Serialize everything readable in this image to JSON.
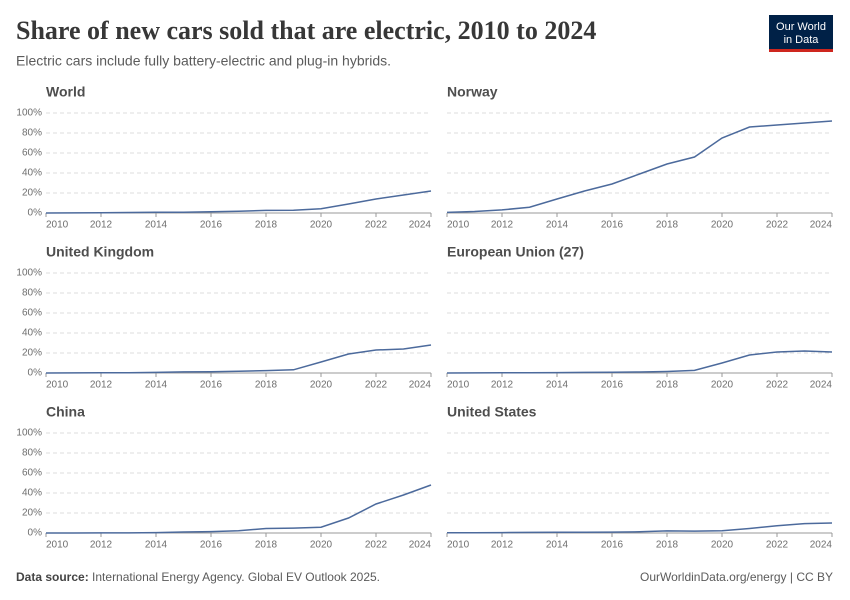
{
  "title": "Share of new cars sold that are electric, 2010 to 2024",
  "subtitle": "Electric cars include fully battery-electric and plug-in hybrids.",
  "logo": [
    "Our World",
    "in Data"
  ],
  "source": {
    "label": "Data source:",
    "text": "International Energy Agency. Global EV Outlook 2025."
  },
  "credit": "OurWorldinData.org/energy | CC BY",
  "chart_data": [
    {
      "type": "line",
      "title": "World",
      "color": "#4c6a9c",
      "grid": true,
      "x": [
        2010,
        2011,
        2012,
        2013,
        2014,
        2015,
        2016,
        2017,
        2018,
        2019,
        2020,
        2021,
        2022,
        2023,
        2024
      ],
      "values": [
        0,
        0.1,
        0.2,
        0.5,
        0.7,
        0.8,
        1.2,
        1.7,
        2.6,
        2.7,
        4.2,
        9,
        14,
        18,
        22
      ],
      "xlim": [
        2010,
        2024
      ],
      "xticks": [
        2010,
        2012,
        2014,
        2016,
        2018,
        2020,
        2022,
        2024
      ],
      "ylim": [
        0,
        100
      ],
      "yticks": [
        {
          "value": 0,
          "label": "0%"
        },
        {
          "value": 20,
          "label": "20%"
        },
        {
          "value": 40,
          "label": "40%"
        },
        {
          "value": 60,
          "label": "60%"
        },
        {
          "value": 80,
          "label": "80%"
        },
        {
          "value": 100,
          "label": "100%"
        }
      ]
    },
    {
      "type": "line",
      "title": "Norway",
      "color": "#4c6a9c",
      "grid": true,
      "x": [
        2010,
        2011,
        2012,
        2013,
        2014,
        2015,
        2016,
        2017,
        2018,
        2019,
        2020,
        2021,
        2022,
        2023,
        2024
      ],
      "values": [
        0.6,
        1.5,
        3.1,
        5.8,
        14,
        22,
        29,
        39,
        49,
        56,
        75,
        86,
        88,
        90,
        92
      ],
      "xlim": [
        2010,
        2024
      ],
      "xticks": [
        2010,
        2012,
        2014,
        2016,
        2018,
        2020,
        2022,
        2024
      ],
      "ylim": [
        0,
        100
      ],
      "yticks": [
        0,
        20,
        40,
        60,
        80,
        100
      ]
    },
    {
      "type": "line",
      "title": "United Kingdom",
      "color": "#4c6a9c",
      "grid": true,
      "x": [
        2010,
        2011,
        2012,
        2013,
        2014,
        2015,
        2016,
        2017,
        2018,
        2019,
        2020,
        2021,
        2022,
        2023,
        2024
      ],
      "values": [
        0,
        0.1,
        0.2,
        0.3,
        0.6,
        1.1,
        1.3,
        1.8,
        2.4,
        3.2,
        11,
        19,
        23,
        24,
        28
      ],
      "xlim": [
        2010,
        2024
      ],
      "xticks": [
        2010,
        2012,
        2014,
        2016,
        2018,
        2020,
        2022,
        2024
      ],
      "ylim": [
        0,
        100
      ],
      "yticks": [
        {
          "value": 0,
          "label": "0%"
        },
        {
          "value": 20,
          "label": "20%"
        },
        {
          "value": 40,
          "label": "40%"
        },
        {
          "value": 60,
          "label": "60%"
        },
        {
          "value": 80,
          "label": "80%"
        },
        {
          "value": 100,
          "label": "100%"
        }
      ]
    },
    {
      "type": "line",
      "title": "European Union (27)",
      "color": "#4c6a9c",
      "grid": true,
      "x": [
        2010,
        2011,
        2012,
        2013,
        2014,
        2015,
        2016,
        2017,
        2018,
        2019,
        2020,
        2021,
        2022,
        2023,
        2024
      ],
      "values": [
        0,
        0.1,
        0.2,
        0.3,
        0.4,
        0.6,
        0.7,
        1.0,
        1.5,
        2.6,
        10,
        18,
        21,
        22,
        21
      ],
      "xlim": [
        2010,
        2024
      ],
      "xticks": [
        2010,
        2012,
        2014,
        2016,
        2018,
        2020,
        2022,
        2024
      ],
      "ylim": [
        0,
        100
      ],
      "yticks": [
        0,
        20,
        40,
        60,
        80,
        100
      ]
    },
    {
      "type": "line",
      "title": "China",
      "color": "#4c6a9c",
      "grid": true,
      "x": [
        2010,
        2011,
        2012,
        2013,
        2014,
        2015,
        2016,
        2017,
        2018,
        2019,
        2020,
        2021,
        2022,
        2023,
        2024
      ],
      "values": [
        0,
        0,
        0.1,
        0.1,
        0.4,
        1,
        1.4,
        2.2,
        4.5,
        4.9,
        5.8,
        15,
        29,
        38,
        48
      ],
      "xlim": [
        2010,
        2024
      ],
      "xticks": [
        2010,
        2012,
        2014,
        2016,
        2018,
        2020,
        2022,
        2024
      ],
      "ylim": [
        0,
        100
      ],
      "yticks": [
        {
          "value": 0,
          "label": "0%"
        },
        {
          "value": 20,
          "label": "20%"
        },
        {
          "value": 40,
          "label": "40%"
        },
        {
          "value": 60,
          "label": "60%"
        },
        {
          "value": 80,
          "label": "80%"
        },
        {
          "value": 100,
          "label": "100%"
        }
      ]
    },
    {
      "type": "line",
      "title": "United States",
      "color": "#4c6a9c",
      "grid": true,
      "x": [
        2010,
        2011,
        2012,
        2013,
        2014,
        2015,
        2016,
        2017,
        2018,
        2019,
        2020,
        2021,
        2022,
        2023,
        2024
      ],
      "values": [
        0.2,
        0.2,
        0.4,
        0.6,
        0.7,
        0.7,
        0.9,
        1.2,
        2.1,
        1.9,
        2.2,
        4.5,
        7.3,
        9.4,
        10
      ],
      "xlim": [
        2010,
        2024
      ],
      "xticks": [
        2010,
        2012,
        2014,
        2016,
        2018,
        2020,
        2022,
        2024
      ],
      "ylim": [
        0,
        100
      ],
      "yticks": [
        0,
        20,
        40,
        60,
        80,
        100
      ]
    }
  ]
}
